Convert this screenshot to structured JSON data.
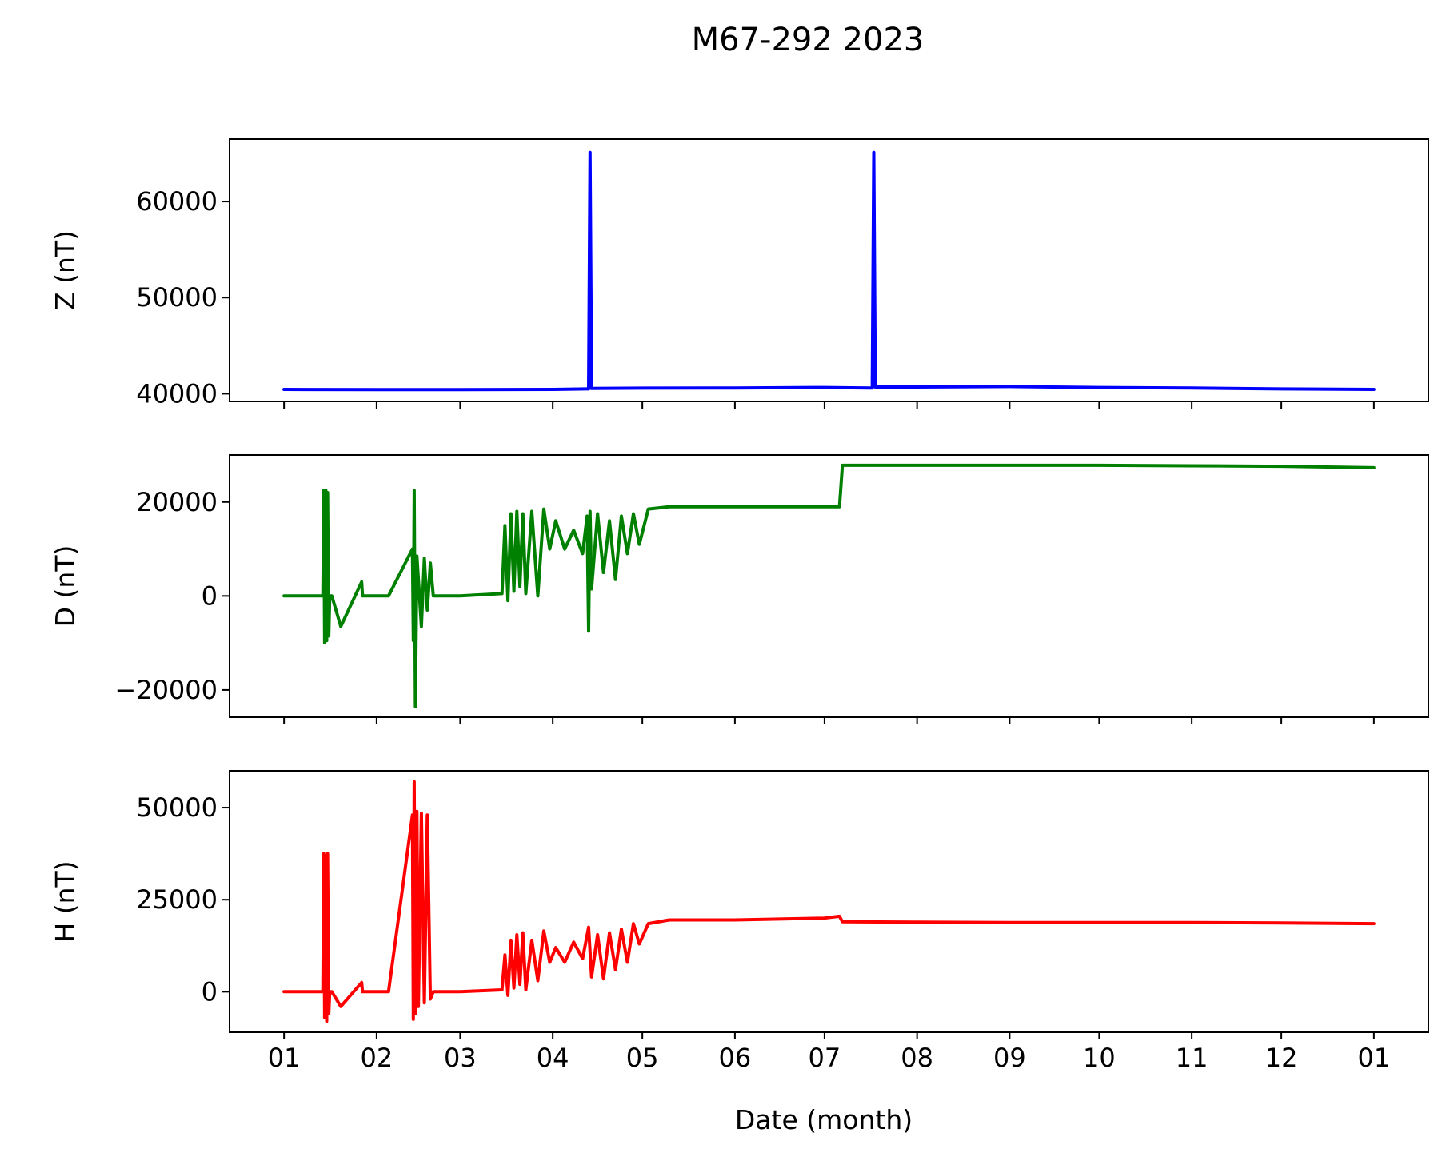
{
  "figure": {
    "title": "M67-292 2023",
    "xlabel": "Date (month)"
  },
  "chart_data": [
    {
      "type": "line",
      "ylabel": "Z (nT)",
      "color": "#0000ff",
      "ylim": [
        39200,
        66500
      ],
      "yticks": [
        40000,
        50000,
        60000
      ],
      "ytick_labels": [
        "40000",
        "50000",
        "60000"
      ],
      "x": [
        "2023-01-01",
        "2023-02-01",
        "2023-03-01",
        "2023-04-01",
        "2023-04-12",
        "2023-04-13",
        "2023-04-13.5",
        "2023-04-14",
        "2023-05-01",
        "2023-06-01",
        "2023-07-01",
        "2023-07-16",
        "2023-07-17",
        "2023-07-17.5",
        "2023-07-18",
        "2023-08-01",
        "2023-09-01",
        "2023-10-01",
        "2023-11-01",
        "2023-12-01",
        "2024-01-01"
      ],
      "y": [
        40450,
        40420,
        40430,
        40450,
        40500,
        40500,
        65100,
        40550,
        40580,
        40600,
        40650,
        40600,
        40600,
        65100,
        40700,
        40700,
        40750,
        40650,
        40600,
        40500,
        40450
      ]
    },
    {
      "type": "line",
      "ylabel": "D (nT)",
      "color": "#008000",
      "ylim": [
        -25800,
        30000
      ],
      "yticks": [
        -20000,
        0,
        20000
      ],
      "ytick_labels": [
        "−20000",
        "0",
        "20000"
      ],
      "x": [
        "2023-01-01",
        "2023-01-14",
        "2023-01-14.3",
        "2023-01-14.6",
        "2023-01-15",
        "2023-01-15.3",
        "2023-01-15.6",
        "2023-01-16",
        "2023-01-16.3",
        "2023-01-17",
        "2023-01-20",
        "2023-01-27",
        "2023-01-27.3",
        "2023-01-28",
        "2023-02-05",
        "2023-02-13",
        "2023-02-13.3",
        "2023-02-13.6",
        "2023-02-14",
        "2023-02-14.5",
        "2023-02-16",
        "2023-02-17",
        "2023-02-18",
        "2023-02-19",
        "2023-02-20",
        "2023-03-01",
        "2023-03-15",
        "2023-03-16",
        "2023-03-17",
        "2023-03-18",
        "2023-03-19",
        "2023-03-20",
        "2023-03-21",
        "2023-03-22",
        "2023-03-23",
        "2023-03-25",
        "2023-03-27",
        "2023-03-29",
        "2023-03-31",
        "2023-04-02",
        "2023-04-05",
        "2023-04-08",
        "2023-04-11",
        "2023-04-12.5",
        "2023-04-13",
        "2023-04-13.5",
        "2023-04-14",
        "2023-04-16",
        "2023-04-18",
        "2023-04-20",
        "2023-04-22",
        "2023-04-24",
        "2023-04-26",
        "2023-04-28",
        "2023-04-30",
        "2023-05-03",
        "2023-05-10",
        "2023-06-01",
        "2023-07-01",
        "2023-07-06",
        "2023-07-07",
        "2023-08-01",
        "2023-09-01",
        "2023-10-01",
        "2023-11-01",
        "2023-12-01",
        "2024-01-01"
      ],
      "y": [
        0,
        0,
        22500,
        -10000,
        22500,
        -9500,
        22000,
        -8500,
        0,
        0,
        -6500,
        3000,
        0,
        0,
        0,
        10000,
        -9500,
        22500,
        -23500,
        8500,
        -6500,
        8000,
        -3000,
        7000,
        0,
        0,
        500,
        15000,
        -1000,
        17500,
        1000,
        18000,
        2000,
        17500,
        500,
        18000,
        0,
        18500,
        10000,
        16000,
        10000,
        14000,
        9000,
        17000,
        -7500,
        18000,
        1500,
        17500,
        5000,
        16000,
        3500,
        17000,
        9000,
        17500,
        11000,
        18500,
        19000,
        19000,
        19000,
        19000,
        27800,
        27800,
        27800,
        27800,
        27700,
        27600,
        27300
      ]
    },
    {
      "type": "line",
      "ylabel": "H (nT)",
      "color": "#ff0000",
      "ylim": [
        -11000,
        60000
      ],
      "yticks": [
        0,
        25000,
        50000
      ],
      "ytick_labels": [
        "0",
        "25000",
        "50000"
      ],
      "x": [
        "2023-01-01",
        "2023-01-14",
        "2023-01-14.3",
        "2023-01-14.6",
        "2023-01-15",
        "2023-01-15.3",
        "2023-01-15.6",
        "2023-01-16",
        "2023-01-16.3",
        "2023-01-17",
        "2023-01-20",
        "2023-01-27",
        "2023-01-27.3",
        "2023-01-28",
        "2023-02-05",
        "2023-02-13",
        "2023-02-13.3",
        "2023-02-13.6",
        "2023-02-14",
        "2023-02-14.5",
        "2023-02-15",
        "2023-02-16",
        "2023-02-17",
        "2023-02-18",
        "2023-02-19",
        "2023-02-20",
        "2023-03-01",
        "2023-03-15",
        "2023-03-16",
        "2023-03-17",
        "2023-03-18",
        "2023-03-19",
        "2023-03-20",
        "2023-03-21",
        "2023-03-22",
        "2023-03-23",
        "2023-03-25",
        "2023-03-27",
        "2023-03-29",
        "2023-03-31",
        "2023-04-02",
        "2023-04-05",
        "2023-04-08",
        "2023-04-11",
        "2023-04-13",
        "2023-04-14",
        "2023-04-16",
        "2023-04-18",
        "2023-04-20",
        "2023-04-22",
        "2023-04-24",
        "2023-04-26",
        "2023-04-28",
        "2023-04-30",
        "2023-05-03",
        "2023-05-10",
        "2023-06-01",
        "2023-07-01",
        "2023-07-06",
        "2023-07-07",
        "2023-08-01",
        "2023-09-01",
        "2023-10-01",
        "2023-11-01",
        "2023-12-01",
        "2024-01-01"
      ],
      "y": [
        0,
        0,
        37500,
        -7000,
        37000,
        -8000,
        37500,
        -6000,
        0,
        0,
        -4000,
        2500,
        0,
        0,
        0,
        48000,
        -7500,
        57000,
        -6000,
        49000,
        -4000,
        48500,
        -3000,
        48000,
        -2000,
        0,
        0,
        500,
        10000,
        -1000,
        14000,
        1000,
        15500,
        2000,
        16000,
        500,
        14000,
        3000,
        16500,
        8000,
        12000,
        8000,
        13500,
        9000,
        17500,
        4000,
        15500,
        3500,
        16000,
        6000,
        17000,
        8000,
        18500,
        13000,
        18500,
        19500,
        19500,
        20000,
        20500,
        19000,
        18900,
        18800,
        18800,
        18800,
        18700,
        18500
      ]
    }
  ],
  "xaxis": {
    "ticks": [
      "2023-01-01",
      "2023-02-01",
      "2023-03-01",
      "2023-04-01",
      "2023-05-01",
      "2023-06-01",
      "2023-07-01",
      "2023-08-01",
      "2023-09-01",
      "2023-10-01",
      "2023-11-01",
      "2023-12-01",
      "2024-01-01"
    ],
    "tick_labels": [
      "01",
      "02",
      "03",
      "04",
      "05",
      "06",
      "07",
      "08",
      "09",
      "10",
      "11",
      "12",
      "01"
    ]
  }
}
